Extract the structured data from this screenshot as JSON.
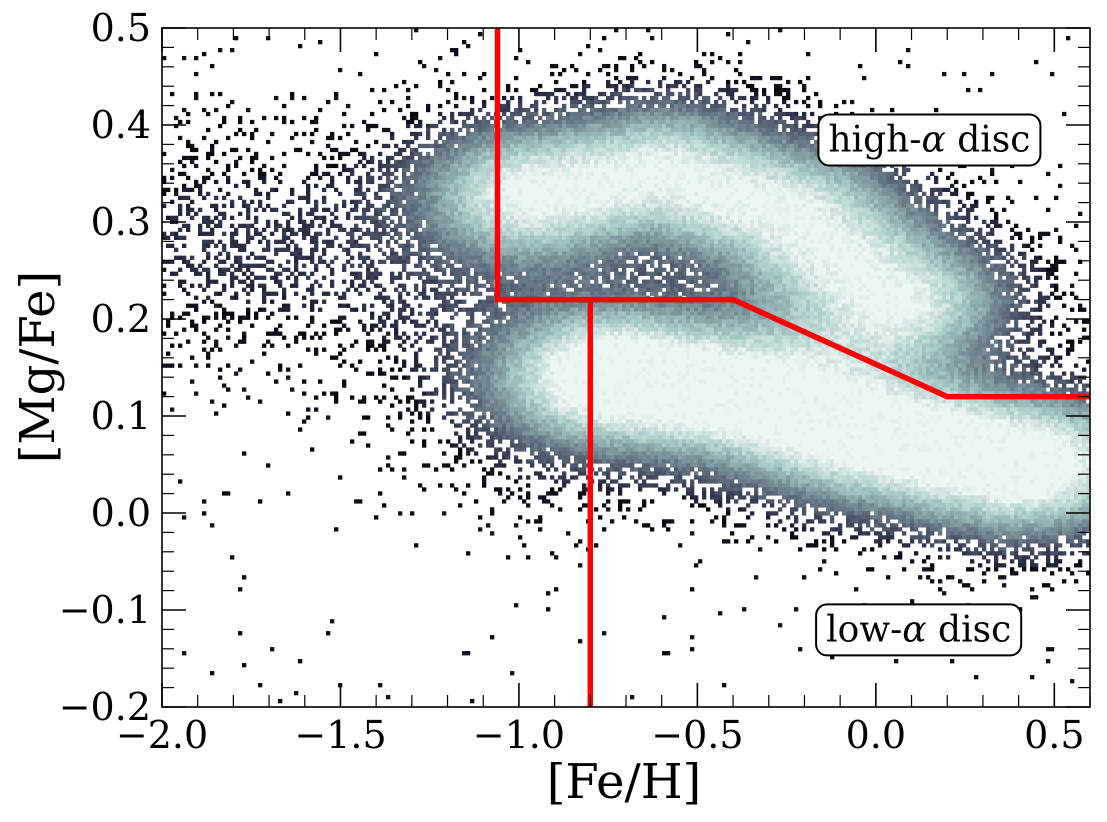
{
  "chart_data": {
    "type": "heatmap",
    "title": "",
    "xlabel": "[Fe/H]",
    "ylabel": "[Mg/Fe]",
    "xlim": [
      -2.0,
      0.6
    ],
    "ylim": [
      -0.2,
      0.5
    ],
    "grid": false,
    "colormap": "bone",
    "x_ticks": [
      {
        "value": -2.0,
        "label": "−2.0"
      },
      {
        "value": -1.5,
        "label": "−1.5"
      },
      {
        "value": -1.0,
        "label": "−1.0"
      },
      {
        "value": -0.5,
        "label": "−0.5"
      },
      {
        "value": 0.0,
        "label": "0.0"
      },
      {
        "value": 0.5,
        "label": "0.5"
      }
    ],
    "y_ticks": [
      {
        "value": -0.2,
        "label": "−0.2"
      },
      {
        "value": -0.1,
        "label": "−0.1"
      },
      {
        "value": 0.0,
        "label": "0.0"
      },
      {
        "value": 0.1,
        "label": "0.1"
      },
      {
        "value": 0.2,
        "label": "0.2"
      },
      {
        "value": 0.3,
        "label": "0.3"
      },
      {
        "value": 0.4,
        "label": "0.4"
      },
      {
        "value": 0.5,
        "label": "0.5"
      }
    ],
    "density_components": [
      {
        "label": "high-alpha ridge",
        "points": [
          [
            -0.95,
            0.33
          ],
          [
            -0.6,
            0.35
          ],
          [
            -0.25,
            0.31
          ],
          [
            0.05,
            0.22
          ]
        ],
        "width_fe": 0.2,
        "width_mg": 0.045,
        "amplitude": 1.0
      },
      {
        "label": "low-alpha ridge",
        "points": [
          [
            -0.7,
            0.14
          ],
          [
            -0.35,
            0.12
          ],
          [
            0.0,
            0.08
          ],
          [
            0.4,
            0.05
          ]
        ],
        "width_fe": 0.22,
        "width_mg": 0.045,
        "amplitude": 1.3
      },
      {
        "label": "metal-poor halo",
        "points": [
          [
            -1.8,
            0.28
          ],
          [
            -1.45,
            0.27
          ],
          [
            -1.1,
            0.22
          ],
          [
            -0.85,
            0.13
          ]
        ],
        "width_fe": 0.28,
        "width_mg": 0.075,
        "amplitude": 0.12
      }
    ],
    "dividing_lines": [
      {
        "name": "vertical cut at [Fe/H] = -0.8",
        "color": "#ff0000",
        "points": [
          [
            -0.8,
            -0.2
          ],
          [
            -0.8,
            0.22
          ]
        ]
      },
      {
        "name": "high/low alpha boundary",
        "color": "#ff0000",
        "points": [
          [
            -1.06,
            0.5
          ],
          [
            -1.06,
            0.22
          ],
          [
            -0.4,
            0.22
          ],
          [
            0.2,
            0.12
          ],
          [
            0.6,
            0.12
          ]
        ]
      }
    ],
    "annotations": [
      {
        "id": "high-alpha",
        "text_before": "high-",
        "symbol": "α",
        "text_after": " disc",
        "x": 0.15,
        "y": 0.385
      },
      {
        "id": "low-alpha",
        "text_before": "low-",
        "symbol": "α",
        "text_after": " disc",
        "x": 0.12,
        "y": -0.12
      }
    ]
  }
}
